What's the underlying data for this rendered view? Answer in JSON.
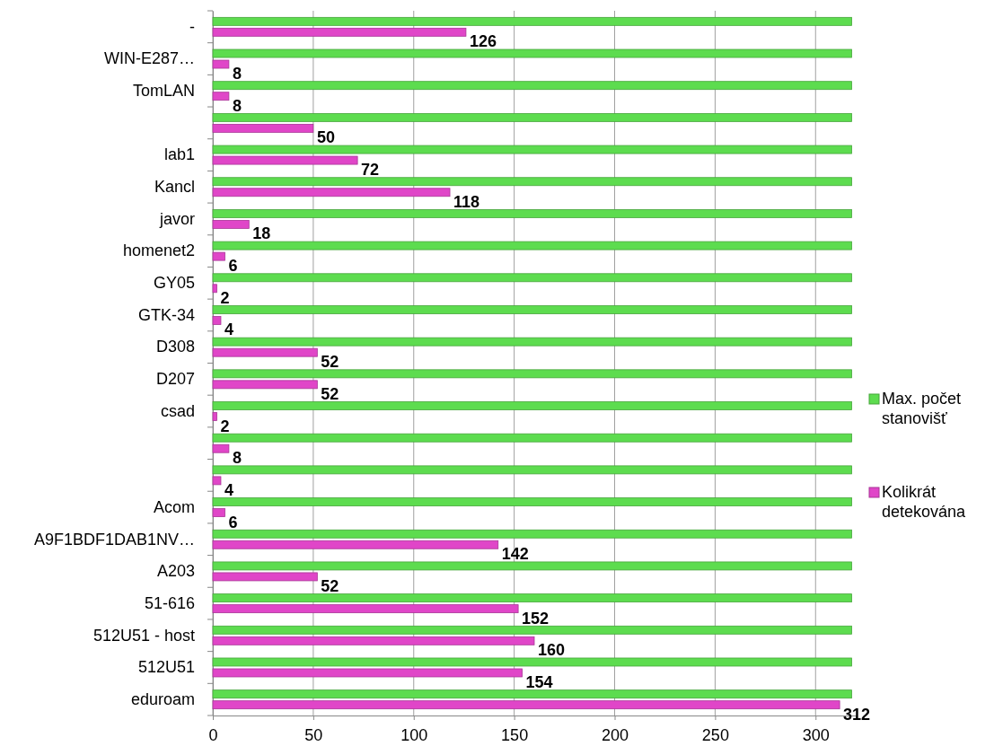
{
  "chart_data": {
    "type": "bar",
    "orientation": "horizontal",
    "categories": [
      "-",
      "WIN-E287…",
      "TomLAN",
      null,
      "lab1",
      "Kancl",
      "javor",
      "homenet2",
      "GY05",
      "GTK-34",
      "D308",
      "D207",
      "csad",
      null,
      null,
      "Acom",
      "A9F1BDF1DAB1NV…",
      "A203",
      "51-616",
      "512U51 - host",
      "512U51",
      "eduroam"
    ],
    "series": [
      {
        "name": "Max. počet stanovišť",
        "color": "#5ddc4f",
        "values": [
          318,
          318,
          318,
          318,
          318,
          318,
          318,
          318,
          318,
          318,
          318,
          318,
          318,
          318,
          318,
          318,
          318,
          318,
          318,
          318,
          318,
          318
        ]
      },
      {
        "name": "Kolikrát detekována",
        "color": "#e046c8",
        "values": [
          126,
          8,
          8,
          50,
          72,
          118,
          18,
          6,
          2,
          4,
          52,
          52,
          2,
          8,
          4,
          6,
          142,
          52,
          152,
          160,
          154,
          312
        ],
        "value_labels": [
          "126",
          "8",
          "8",
          "50",
          "72",
          "118",
          "18",
          "6",
          "2",
          "4",
          "52",
          "52",
          "2",
          "8",
          "4",
          "6",
          "142",
          "52",
          "152",
          "160",
          "154",
          "312"
        ]
      }
    ],
    "xlim": [
      0,
      320
    ],
    "xticks": [
      0,
      50,
      100,
      150,
      200,
      250,
      300
    ],
    "grid": "x",
    "legend": "right"
  }
}
